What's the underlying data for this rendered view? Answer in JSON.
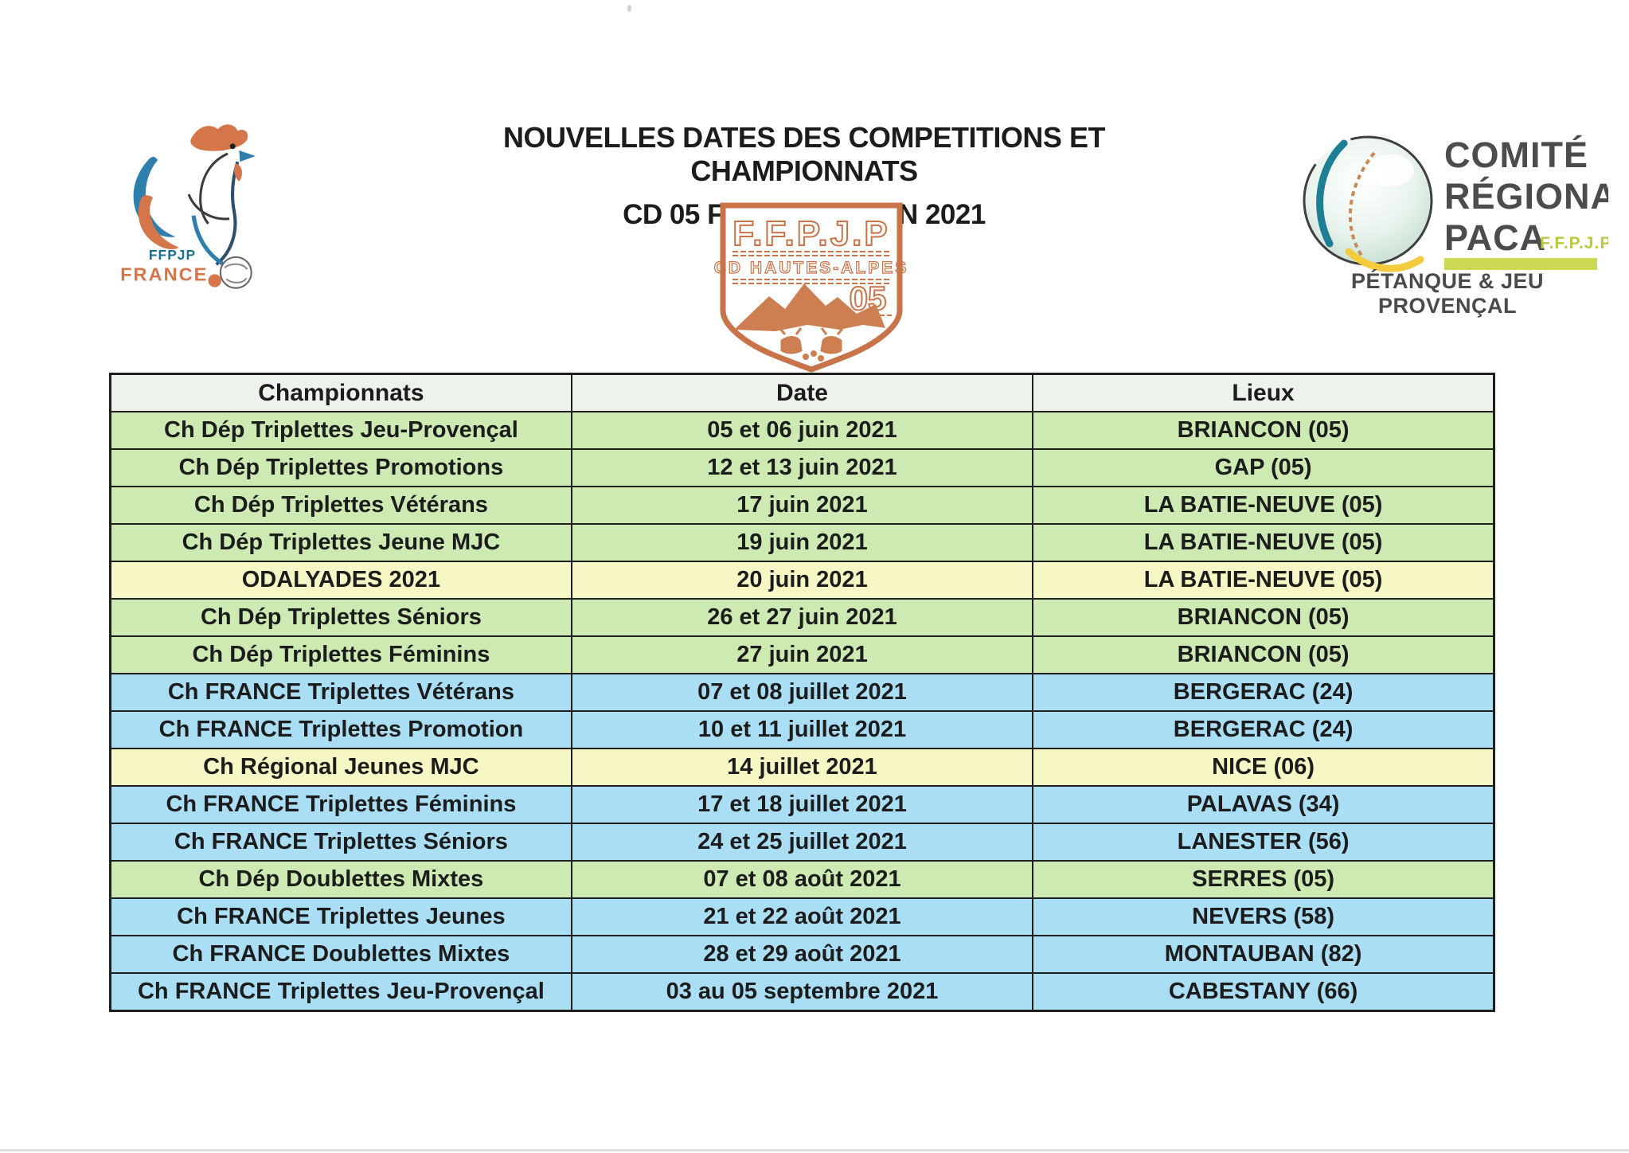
{
  "title": {
    "line1": "NOUVELLES DATES DES COMPETITIONS ET CHAMPIONNATS",
    "line2": "CD 05 FFPJP / SAISON 2021"
  },
  "logos": {
    "ffpjp_france": {
      "org": "FFPJP",
      "country": "FRANCE"
    },
    "cd05_shield": {
      "federation": "F.F.P.J.P",
      "committee": "CD HAUTES-ALPES",
      "department": "05"
    },
    "paca": {
      "line1": "COMITÉ",
      "line2": "RÉGIONAL",
      "line3": "PACA",
      "federation": "F.F.P.J.P.",
      "tagline": "PÉTANQUE & JEU PROVENÇAL"
    }
  },
  "colors": {
    "row_green": "#cdeab3",
    "row_yellow": "#f7f7c5",
    "row_blue": "#a9def4",
    "header_bg": "#edf2ec",
    "border": "#1f1f1f",
    "logo_orange": "#cd7f52",
    "rooster_blue": "#2f7fae",
    "paca_text": "#4c4c4c",
    "paca_accent": "#c5d44e"
  },
  "table": {
    "headers": [
      "Championnats",
      "Date",
      "Lieux"
    ],
    "rows": [
      {
        "championnat": "Ch Dép Triplettes Jeu-Provençal",
        "date": "05 et 06 juin 2021",
        "lieu": "BRIANCON (05)",
        "color": "green"
      },
      {
        "championnat": "Ch Dép Triplettes Promotions",
        "date": "12 et 13 juin 2021",
        "lieu": "GAP (05)",
        "color": "green"
      },
      {
        "championnat": "Ch Dép Triplettes Vétérans",
        "date": "17 juin 2021",
        "lieu": "LA BATIE-NEUVE (05)",
        "color": "green"
      },
      {
        "championnat": "Ch Dép Triplettes Jeune MJC",
        "date": "19 juin 2021",
        "lieu": "LA BATIE-NEUVE (05)",
        "color": "green"
      },
      {
        "championnat": "ODALYADES 2021",
        "date": "20 juin 2021",
        "lieu": "LA BATIE-NEUVE (05)",
        "color": "yellow"
      },
      {
        "championnat": "Ch Dép Triplettes Séniors",
        "date": "26 et 27 juin 2021",
        "lieu": "BRIANCON (05)",
        "color": "green"
      },
      {
        "championnat": "Ch Dép Triplettes Féminins",
        "date": "27 juin 2021",
        "lieu": "BRIANCON (05)",
        "color": "green"
      },
      {
        "championnat": "Ch FRANCE Triplettes Vétérans",
        "date": "07 et 08 juillet 2021",
        "lieu": "BERGERAC (24)",
        "color": "blue"
      },
      {
        "championnat": "Ch FRANCE Triplettes Promotion",
        "date": "10 et 11 juillet 2021",
        "lieu": "BERGERAC (24)",
        "color": "blue"
      },
      {
        "championnat": "Ch Régional Jeunes MJC",
        "date": "14 juillet 2021",
        "lieu": "NICE (06)",
        "color": "yellow"
      },
      {
        "championnat": "Ch FRANCE Triplettes Féminins",
        "date": "17 et 18 juillet 2021",
        "lieu": "PALAVAS (34)",
        "color": "blue"
      },
      {
        "championnat": "Ch FRANCE Triplettes Séniors",
        "date": "24 et 25 juillet 2021",
        "lieu": "LANESTER (56)",
        "color": "blue"
      },
      {
        "championnat": "Ch Dép Doublettes Mixtes",
        "date": "07 et 08 août 2021",
        "lieu": "SERRES (05)",
        "color": "green"
      },
      {
        "championnat": "Ch FRANCE Triplettes Jeunes",
        "date": "21 et 22 août 2021",
        "lieu": "NEVERS (58)",
        "color": "blue"
      },
      {
        "championnat": "Ch FRANCE Doublettes Mixtes",
        "date": "28 et 29 août 2021",
        "lieu": "MONTAUBAN (82)",
        "color": "blue"
      },
      {
        "championnat": "Ch FRANCE Triplettes Jeu-Provençal",
        "date": "03 au 05 septembre 2021",
        "lieu": "CABESTANY (66)",
        "color": "blue"
      }
    ]
  }
}
